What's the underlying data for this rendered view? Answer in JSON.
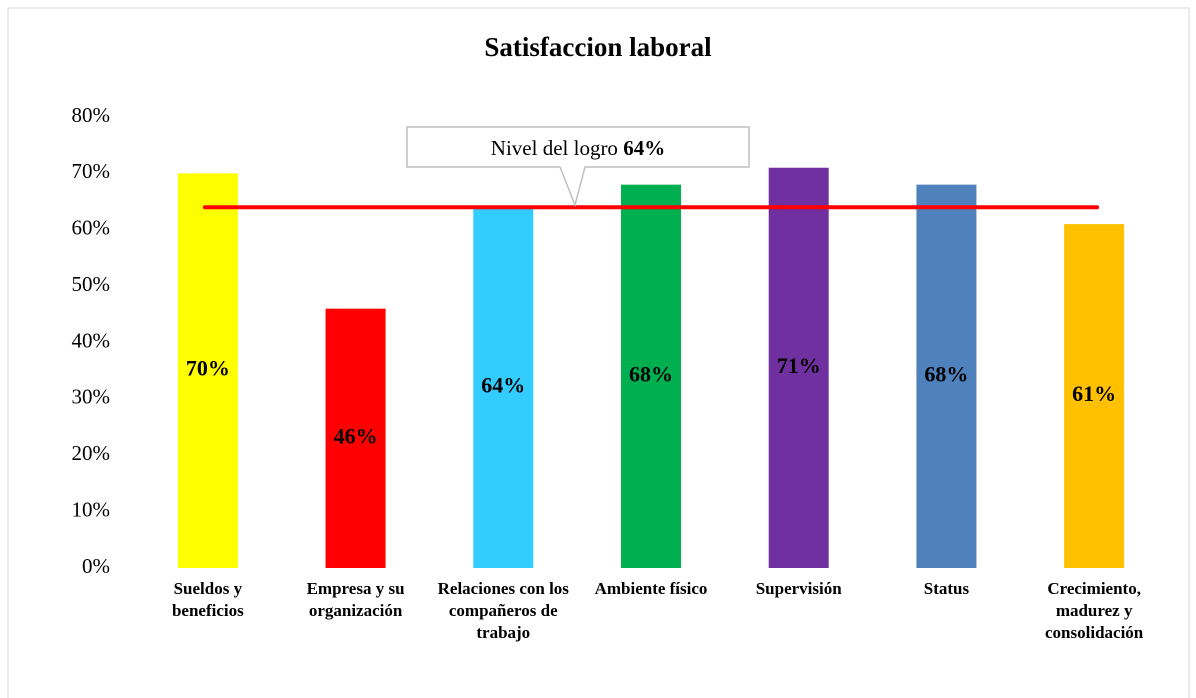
{
  "chart_data": {
    "type": "bar",
    "title": "Satisfaccion laboral",
    "categories": [
      "Sueldos y beneficios",
      "Empresa y su organización",
      "Relaciones con los compañeros de trabajo",
      "Ambiente físico",
      "Supervisión",
      "Status",
      "Crecimiento, madurez y consolidación"
    ],
    "values": [
      70,
      46,
      64,
      68,
      71,
      68,
      61
    ],
    "value_labels": [
      "70%",
      "46%",
      "64%",
      "68%",
      "71%",
      "68%",
      "61%"
    ],
    "colors": [
      "#ffff00",
      "#ff0000",
      "#33ccff",
      "#00b050",
      "#7030a0",
      "#4f81bd",
      "#ffc000"
    ],
    "ylim": [
      0,
      80
    ],
    "yticks": [
      {
        "value": 0,
        "label": "0%"
      },
      {
        "value": 10,
        "label": "10%"
      },
      {
        "value": 20,
        "label": "20%"
      },
      {
        "value": 30,
        "label": "30%"
      },
      {
        "value": 40,
        "label": "40%"
      },
      {
        "value": 50,
        "label": "50%"
      },
      {
        "value": 60,
        "label": "60%"
      },
      {
        "value": 70,
        "label": "70%"
      },
      {
        "value": 80,
        "label": "80%"
      }
    ],
    "grid": false,
    "reference_line": {
      "text": "Nivel del logro",
      "value": 64,
      "value_label": "64%",
      "color": "#ff0000"
    }
  }
}
